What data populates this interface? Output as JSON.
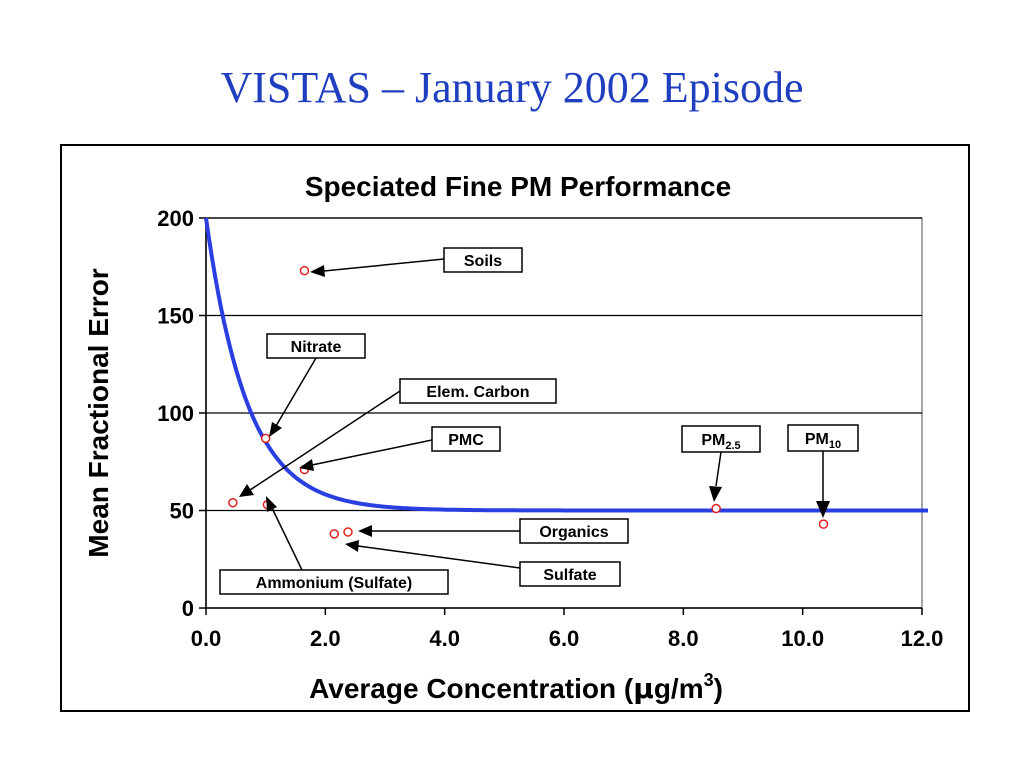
{
  "slide": {
    "title": "VISTAS – January 2002 Episode"
  },
  "chart_data": {
    "type": "scatter",
    "title": "Speciated Fine PM Performance",
    "xlabel": "Average Concentration (µg/m3)",
    "xlabel_parts": {
      "main": "Average Concentration (",
      "mu": "µ",
      "unit": "g/m",
      "sup": "3",
      "close": ")"
    },
    "ylabel": "Mean Fractional Error",
    "xlim": [
      0,
      12
    ],
    "ylim": [
      0,
      200
    ],
    "x_ticks": [
      "0.0",
      "2.0",
      "4.0",
      "6.0",
      "8.0",
      "10.0",
      "12.0"
    ],
    "y_ticks": [
      "0",
      "50",
      "100",
      "150",
      "200"
    ],
    "grid": "horizontal",
    "point_color": "#e02020",
    "curve_color": "#2a3fe0",
    "goal_curve": {
      "asymptote": 50,
      "start": 200,
      "decay": 1.45
    },
    "points": [
      {
        "label": "Soils",
        "x": 1.65,
        "y": 173
      },
      {
        "label": "Nitrate",
        "x": 1.0,
        "y": 87
      },
      {
        "label": "Elem. Carbon",
        "x": 0.45,
        "y": 54
      },
      {
        "label": "PMC",
        "x": 1.65,
        "y": 71
      },
      {
        "label": "Ammonium (Sulfate)",
        "x": 1.03,
        "y": 53
      },
      {
        "label": "Organics",
        "x": 2.38,
        "y": 39
      },
      {
        "label": "Sulfate",
        "x": 2.15,
        "y": 38
      },
      {
        "label": "PM2.5",
        "label_main": "PM",
        "label_sub": "2.5",
        "x": 8.55,
        "y": 51
      },
      {
        "label": "PM10",
        "label_main": "PM",
        "label_sub": "10",
        "x": 10.35,
        "y": 43
      }
    ]
  }
}
